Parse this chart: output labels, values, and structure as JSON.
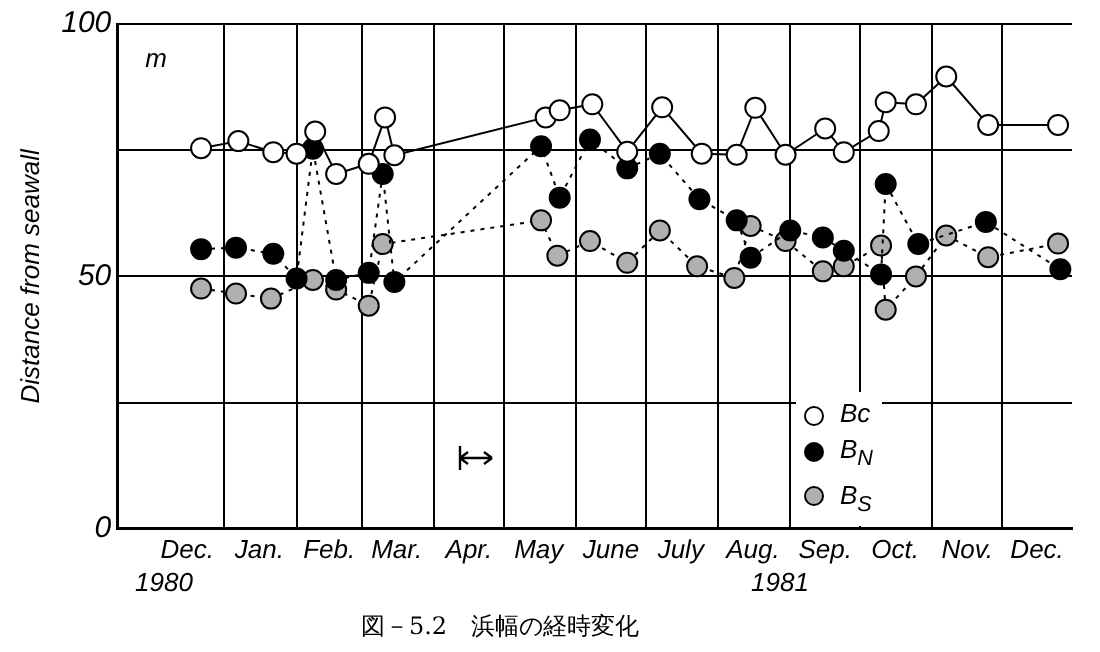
{
  "chart_data": {
    "type": "line",
    "title": "図－5.2　浜幅の経時変化",
    "ylabel": "Distance from seawall",
    "annotations": [
      "m",
      "1980",
      "1981"
    ],
    "xlim": [
      "1980-11-16",
      "1981-12-31"
    ],
    "ylim": [
      0,
      100
    ],
    "xticks": [
      {
        "value": "1980-12-16",
        "label": "Dec."
      },
      {
        "value": "1981-01-01",
        "label": null
      },
      {
        "value": "1981-01-16",
        "label": "Jan."
      },
      {
        "value": "1981-02-01",
        "label": null
      },
      {
        "value": "1981-02-15",
        "label": "Feb."
      },
      {
        "value": "1981-03-01",
        "label": null
      },
      {
        "value": "1981-03-16",
        "label": "Mar."
      },
      {
        "value": "1981-04-01",
        "label": null
      },
      {
        "value": "1981-04-16",
        "label": "Apr."
      },
      {
        "value": "1981-05-01",
        "label": null
      },
      {
        "value": "1981-05-16",
        "label": "May"
      },
      {
        "value": "1981-06-01",
        "label": null
      },
      {
        "value": "1981-06-16",
        "label": "June"
      },
      {
        "value": "1981-07-01",
        "label": null
      },
      {
        "value": "1981-07-16",
        "label": "July"
      },
      {
        "value": "1981-08-01",
        "label": null
      },
      {
        "value": "1981-08-16",
        "label": "Aug."
      },
      {
        "value": "1981-09-01",
        "label": null
      },
      {
        "value": "1981-09-16",
        "label": "Sep."
      },
      {
        "value": "1981-10-01",
        "label": null
      },
      {
        "value": "1981-10-16",
        "label": "Oct."
      },
      {
        "value": "1981-11-01",
        "label": null
      },
      {
        "value": "1981-11-16",
        "label": "Nov."
      },
      {
        "value": "1981-12-01",
        "label": null
      },
      {
        "value": "1981-12-16",
        "label": "Dec."
      }
    ],
    "yticks": [
      0,
      {
        "value": 25,
        "label": null
      },
      50,
      {
        "value": 75,
        "label": null
      },
      100
    ],
    "grid": true,
    "legend": "bottom right",
    "marker": "circle",
    "series": [
      {
        "name": "Bc",
        "color": "#ffffff",
        "line_style": "solid",
        "x": [
          "1980-12-22",
          "1981-01-07",
          "1981-01-22",
          "1981-02-01",
          "1981-02-09",
          "1981-02-18",
          "1981-03-04",
          "1981-03-11",
          "1981-03-15",
          "1981-05-19",
          "1981-05-25",
          "1981-06-08",
          "1981-06-23",
          "1981-07-08",
          "1981-07-25",
          "1981-08-09",
          "1981-08-17",
          "1981-08-30",
          "1981-09-16",
          "1981-09-24",
          "1981-10-09",
          "1981-10-12",
          "1981-10-25",
          "1981-11-07",
          "1981-11-25",
          "1981-12-25"
        ],
        "values": [
          75.4,
          76.8,
          74.6,
          74.3,
          78.7,
          70.3,
          72.3,
          81.5,
          74,
          81.5,
          82.9,
          84.1,
          74.7,
          83.5,
          74.3,
          74.1,
          83.4,
          74.1,
          79.3,
          74.6,
          78.8,
          84.5,
          84.1,
          89.6,
          80,
          80
        ]
      },
      {
        "name": "B$_{N}$",
        "color": "#000000",
        "line_style": "dotted",
        "x": [
          "1980-12-22",
          "1981-01-06",
          "1981-01-22",
          "1981-02-01",
          "1981-02-08",
          "1981-02-18",
          "1981-03-04",
          "1981-03-10",
          "1981-03-15",
          "1981-05-17",
          "1981-05-25",
          "1981-06-07",
          "1981-06-23",
          "1981-07-07",
          "1981-07-24",
          "1981-08-09",
          "1981-08-15",
          "1981-09-01",
          "1981-09-15",
          "1981-09-24",
          "1981-10-10",
          "1981-10-12",
          "1981-10-26",
          "1981-11-24",
          "1981-12-26"
        ],
        "values": [
          55.4,
          55.7,
          54.5,
          49.6,
          75.3,
          49.3,
          50.7,
          70.3,
          48.9,
          75.8,
          65.6,
          77.1,
          71.4,
          74.3,
          65.3,
          61.1,
          53.7,
          59.1,
          57.7,
          55.1,
          50.4,
          68.3,
          56.4,
          60.8,
          51.4
        ]
      },
      {
        "name": "B$_{S}$",
        "color": "#b0b0b0",
        "line_style": "dotted",
        "x": [
          "1980-12-22",
          "1981-01-06",
          "1981-01-21",
          "1981-02-08",
          "1981-02-18",
          "1981-03-04",
          "1981-03-10",
          "1981-05-17",
          "1981-05-24",
          "1981-06-07",
          "1981-06-23",
          "1981-07-07",
          "1981-07-23",
          "1981-08-08",
          "1981-08-15",
          "1981-08-30",
          "1981-09-15",
          "1981-09-24",
          "1981-10-10",
          "1981-10-12",
          "1981-10-25",
          "1981-11-07",
          "1981-11-25",
          "1981-12-25"
        ],
        "values": [
          47.6,
          46.6,
          45.6,
          49.3,
          47.4,
          44.2,
          56.4,
          61.1,
          54.1,
          57,
          52.7,
          59.1,
          52,
          49.7,
          60,
          57,
          51,
          52,
          56.1,
          43.4,
          50,
          58.1,
          53.8,
          56.5
        ]
      }
    ]
  }
}
